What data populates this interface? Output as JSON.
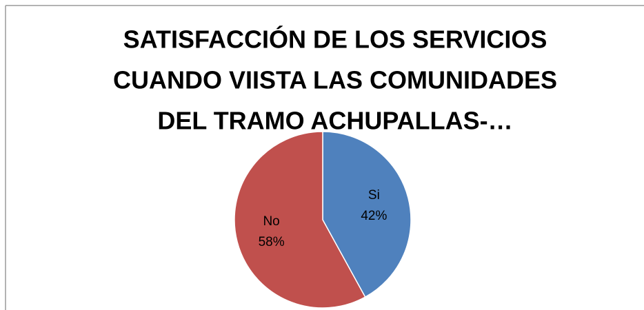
{
  "chart_data": {
    "type": "pie",
    "title": [
      "SATISFACCIÓN DE LOS SERVICIOS",
      "CUANDO VIISTA LAS COMUNIDADES",
      "DEL TRAMO ACHUPALLAS-…"
    ],
    "categories": [
      "Si",
      "No"
    ],
    "values": [
      42,
      58
    ],
    "value_labels": [
      "42%",
      "58%"
    ],
    "colors": [
      "#4f81bd",
      "#c0504d"
    ]
  }
}
